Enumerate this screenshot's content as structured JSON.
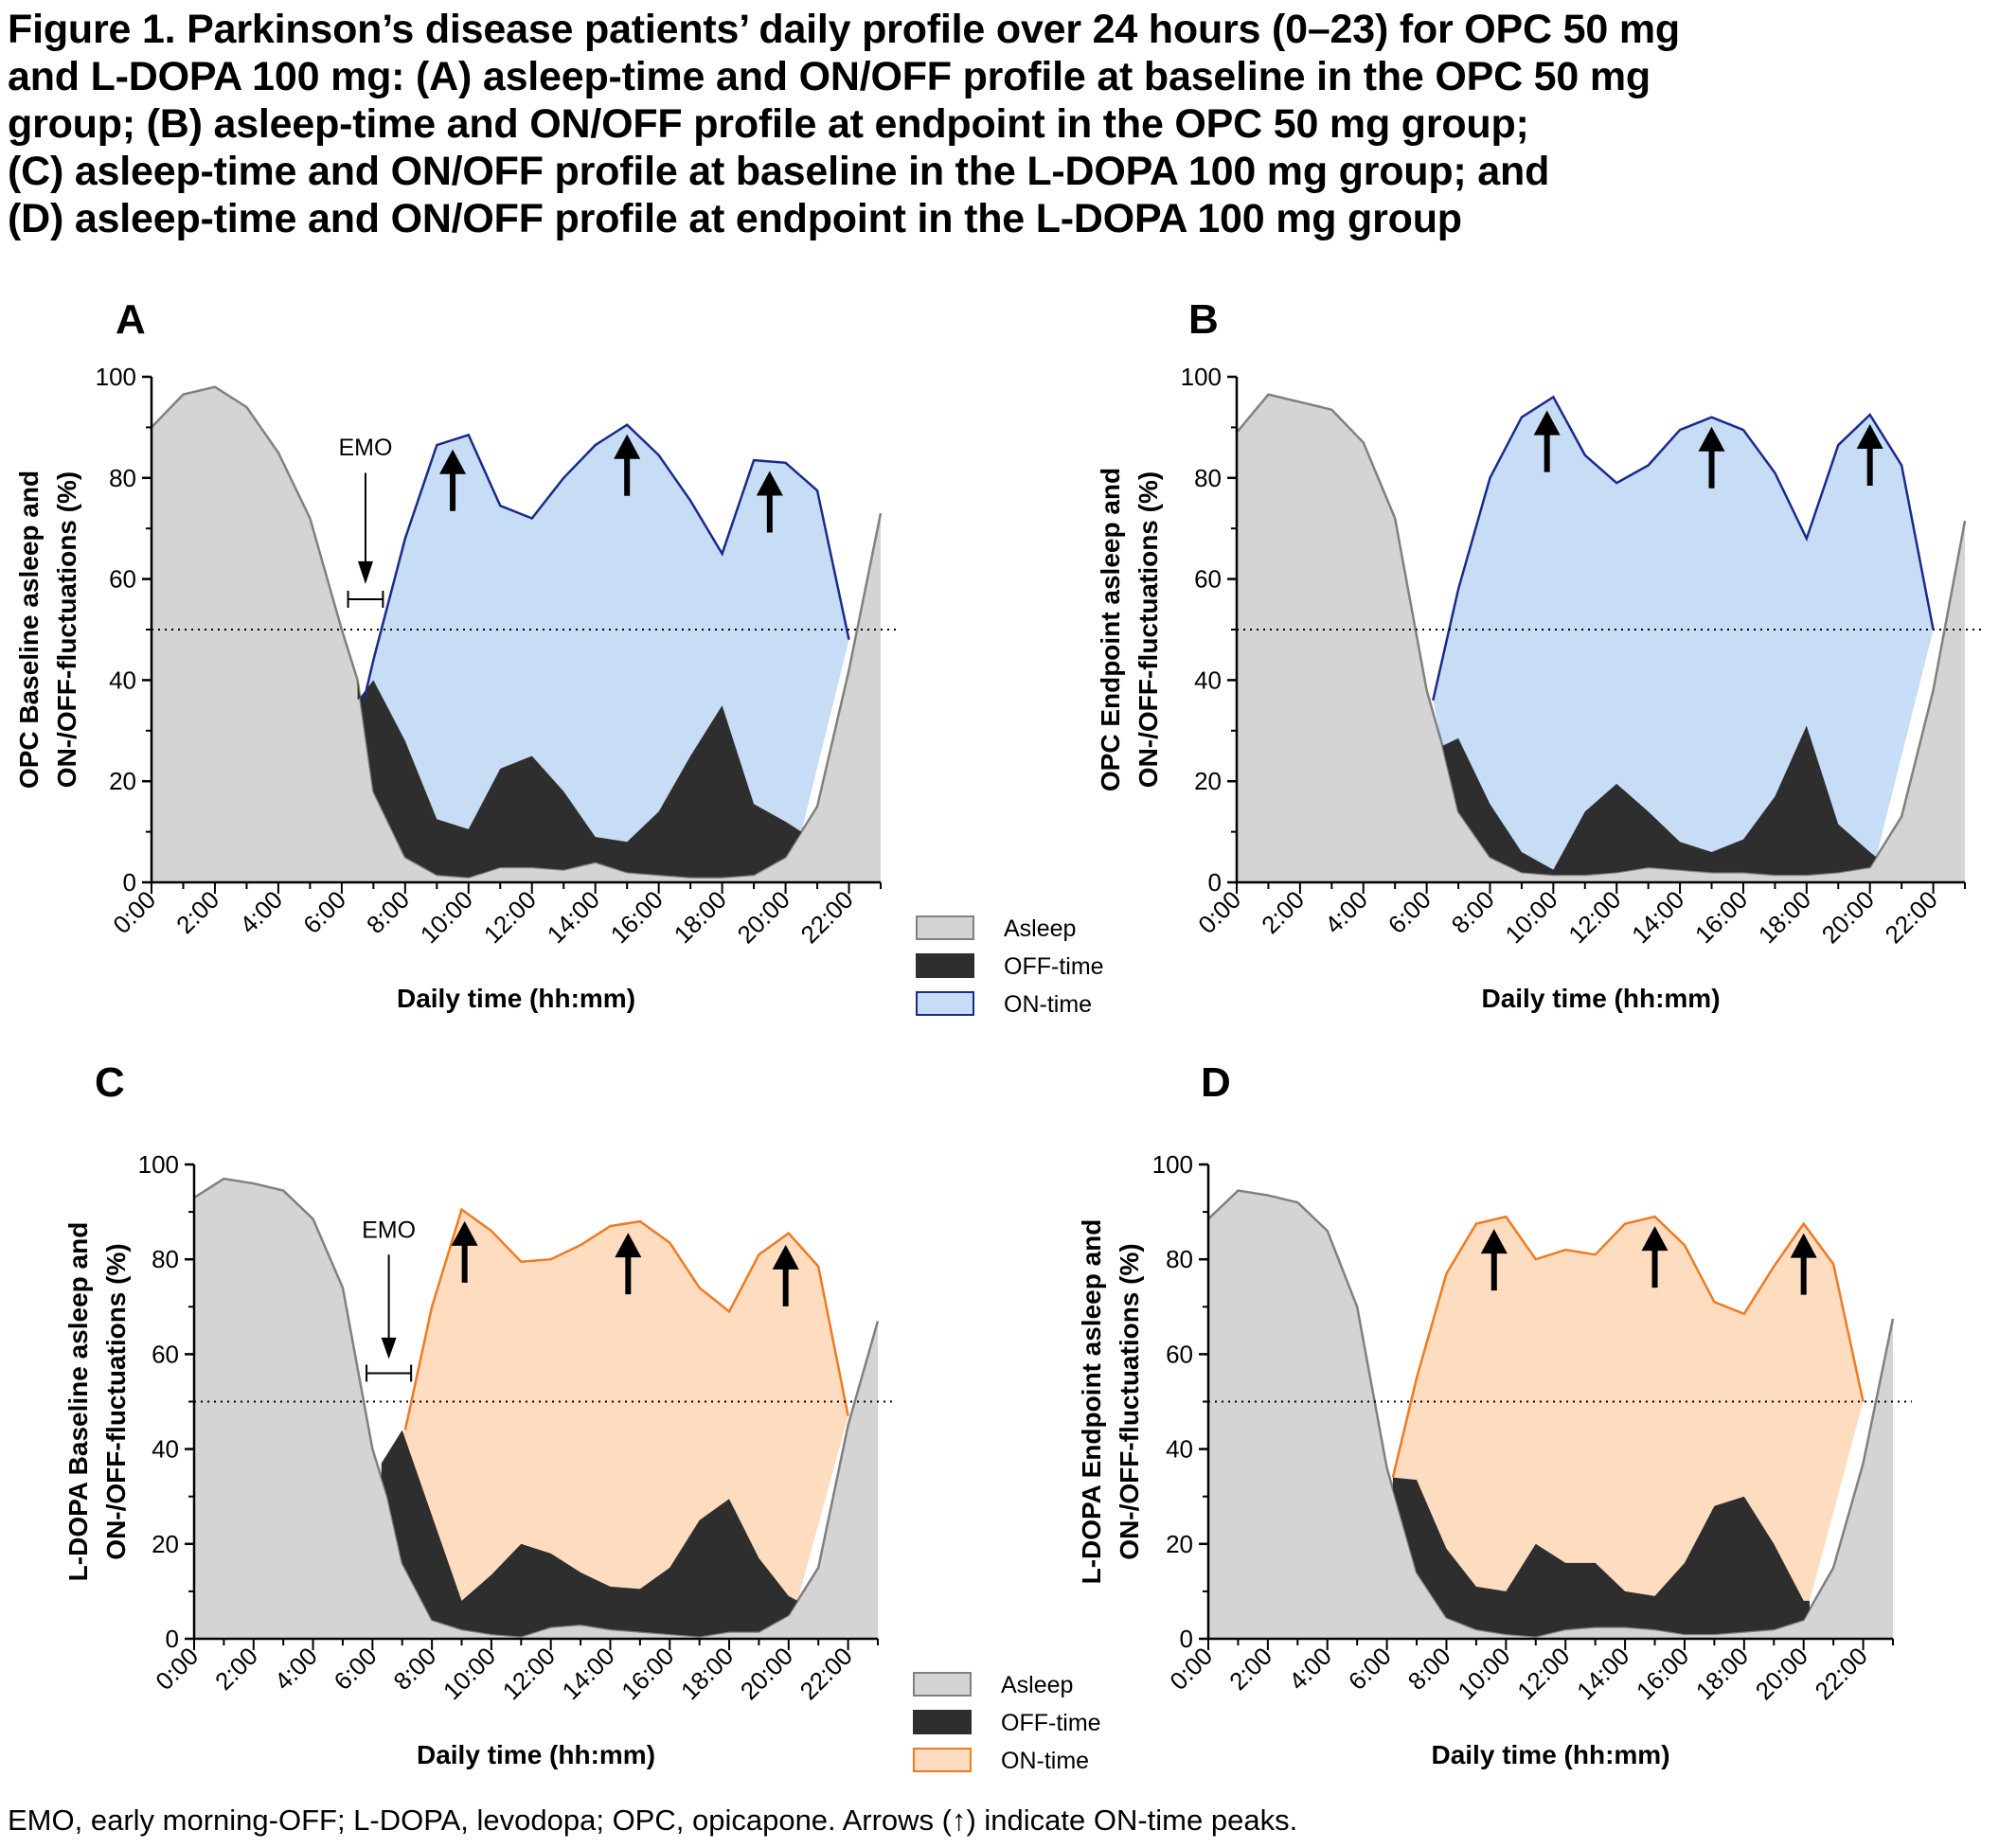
{
  "title_lines": [
    "Figure 1. Parkinson’s disease patients’ daily profile over 24 hours (0–23) for OPC 50 mg",
    "and L-DOPA 100 mg: (A) asleep-time and ON/OFF profile at baseline in the OPC 50 mg",
    "group; (B) asleep-time and ON/OFF profile at endpoint in the OPC 50 mg group;",
    "(C) asleep-time and ON/OFF profile at baseline in the L-DOPA 100 mg group; and",
    "(D) asleep-time and ON/OFF profile at endpoint in the L-DOPA 100 mg group"
  ],
  "footnote": "EMO, early morning-OFF; L-DOPA, levodopa; OPC, opicapone. Arrows (↑) indicate ON-time peaks.",
  "colors": {
    "asleep_fill": "#d4d4d4",
    "asleep_line": "#808080",
    "off_fill": "#2e2e2e",
    "opc_on_fill": "#c7dcf5",
    "opc_on_line": "#1a2a8c",
    "ldopa_on_fill": "#fddcbf",
    "ldopa_on_line": "#ef7a22"
  },
  "chart_data": [
    {
      "panel": "A",
      "type": "area",
      "ylabel_lines": [
        "OPC Baseline asleep and",
        "ON-/OFF-fluctuations (%)"
      ],
      "xlabel": "Daily time (hh:mm)",
      "x_tick_labels": [
        "0:00",
        "2:00",
        "4:00",
        "6:00",
        "8:00",
        "10:00",
        "12:00",
        "14:00",
        "16:00",
        "18:00",
        "20:00",
        "22:00"
      ],
      "y_ticks": [
        0,
        20,
        40,
        60,
        80,
        100
      ],
      "ylim": [
        0,
        100
      ],
      "xlim": [
        0,
        23
      ],
      "reference_line_y": 50,
      "on_color": "opc",
      "asleep": [
        [
          0,
          90
        ],
        [
          1,
          96.5
        ],
        [
          2,
          98
        ],
        [
          3,
          94
        ],
        [
          4,
          85
        ],
        [
          5,
          72
        ],
        [
          6,
          50
        ],
        [
          6.5,
          40
        ],
        [
          7,
          18
        ],
        [
          8,
          5
        ],
        [
          9,
          1.5
        ],
        [
          10,
          1
        ],
        [
          11,
          3
        ],
        [
          12,
          3
        ],
        [
          13,
          2.5
        ],
        [
          14,
          4
        ],
        [
          15,
          2
        ],
        [
          16,
          1.5
        ],
        [
          17,
          1
        ],
        [
          18,
          1
        ],
        [
          19,
          1.5
        ],
        [
          20,
          5
        ],
        [
          21,
          15
        ],
        [
          22,
          42
        ],
        [
          23,
          73
        ]
      ],
      "off_top": [
        [
          6.5,
          36
        ],
        [
          7,
          40
        ],
        [
          8,
          28
        ],
        [
          9,
          12.5
        ],
        [
          10,
          10.5
        ],
        [
          11,
          22.5
        ],
        [
          12,
          25
        ],
        [
          13,
          18
        ],
        [
          14,
          9
        ],
        [
          15,
          8
        ],
        [
          16,
          14
        ],
        [
          17,
          25
        ],
        [
          18,
          35
        ],
        [
          19,
          15.5
        ],
        [
          20,
          12
        ],
        [
          20.5,
          10
        ]
      ],
      "on_top": [
        [
          6.7,
          36
        ],
        [
          7,
          44
        ],
        [
          8,
          68
        ],
        [
          9,
          86.5
        ],
        [
          10,
          88.5
        ],
        [
          11,
          74.5
        ],
        [
          12,
          72
        ],
        [
          13,
          80
        ],
        [
          14,
          86.5
        ],
        [
          15,
          90.5
        ],
        [
          16,
          84.5
        ],
        [
          17,
          75.5
        ],
        [
          18,
          65
        ],
        [
          19,
          83.5
        ],
        [
          20,
          83
        ],
        [
          21,
          77.5
        ],
        [
          22,
          48
        ]
      ],
      "peak_arrows_x": [
        9.5,
        15,
        19.5
      ],
      "emo": {
        "label": "EMO",
        "x_start": 6.2,
        "x_end": 7.3
      },
      "legend": [
        "Asleep",
        "OFF-time",
        "ON-time"
      ]
    },
    {
      "panel": "B",
      "type": "area",
      "ylabel_lines": [
        "OPC Endpoint asleep and",
        "ON-/OFF-fluctuations (%)"
      ],
      "xlabel": "Daily time (hh:mm)",
      "x_tick_labels": [
        "0:00",
        "2:00",
        "4:00",
        "6:00",
        "8:00",
        "10:00",
        "12:00",
        "14:00",
        "16:00",
        "18:00",
        "20:00",
        "22:00"
      ],
      "y_ticks": [
        0,
        20,
        40,
        60,
        80,
        100
      ],
      "ylim": [
        0,
        100
      ],
      "xlim": [
        0,
        23
      ],
      "reference_line_y": 50,
      "on_color": "opc",
      "asleep": [
        [
          0,
          89
        ],
        [
          1,
          96.5
        ],
        [
          2,
          95
        ],
        [
          3,
          93.5
        ],
        [
          4,
          87
        ],
        [
          5,
          72
        ],
        [
          6,
          38
        ],
        [
          6.5,
          27
        ],
        [
          7,
          14
        ],
        [
          8,
          5
        ],
        [
          9,
          2
        ],
        [
          10,
          1.5
        ],
        [
          11,
          1.5
        ],
        [
          12,
          2
        ],
        [
          13,
          3
        ],
        [
          14,
          2.5
        ],
        [
          15,
          2
        ],
        [
          16,
          2
        ],
        [
          17,
          1.5
        ],
        [
          18,
          1.5
        ],
        [
          19,
          2
        ],
        [
          20,
          3
        ],
        [
          21,
          13
        ],
        [
          22,
          38
        ],
        [
          23,
          71.5
        ]
      ],
      "off_top": [
        [
          6.5,
          27
        ],
        [
          7,
          28.5
        ],
        [
          8,
          15.5
        ],
        [
          9,
          6
        ],
        [
          10,
          2.5
        ],
        [
          11,
          14
        ],
        [
          12,
          19.5
        ],
        [
          13,
          14
        ],
        [
          14,
          8
        ],
        [
          15,
          6
        ],
        [
          16,
          8.5
        ],
        [
          17,
          17
        ],
        [
          18,
          31
        ],
        [
          19,
          11.5
        ],
        [
          20,
          6
        ],
        [
          20.2,
          5
        ]
      ],
      "on_top": [
        [
          6.2,
          36
        ],
        [
          7,
          58
        ],
        [
          8,
          80
        ],
        [
          9,
          92
        ],
        [
          10,
          96
        ],
        [
          11,
          84.5
        ],
        [
          12,
          79
        ],
        [
          13,
          82.5
        ],
        [
          14,
          89.5
        ],
        [
          15,
          92
        ],
        [
          16,
          89.5
        ],
        [
          17,
          81
        ],
        [
          18,
          68
        ],
        [
          19,
          86.5
        ],
        [
          20,
          92.5
        ],
        [
          21,
          82.5
        ],
        [
          22,
          50
        ]
      ],
      "peak_arrows_x": [
        9.8,
        15,
        20
      ],
      "emo": null,
      "legend": null
    },
    {
      "panel": "C",
      "type": "area",
      "ylabel_lines": [
        "L-DOPA Baseline asleep and",
        "ON-/OFF-fluctuations (%)"
      ],
      "xlabel": "Daily time (hh:mm)",
      "x_tick_labels": [
        "0:00",
        "2:00",
        "4:00",
        "6:00",
        "8:00",
        "10:00",
        "12:00",
        "14:00",
        "16:00",
        "18:00",
        "20:00",
        "22:00"
      ],
      "y_ticks": [
        0,
        20,
        40,
        60,
        80,
        100
      ],
      "ylim": [
        0,
        100
      ],
      "xlim": [
        0,
        23
      ],
      "reference_line_y": 50,
      "on_color": "ldopa",
      "asleep": [
        [
          0,
          93
        ],
        [
          1,
          97
        ],
        [
          2,
          96
        ],
        [
          3,
          94.5
        ],
        [
          4,
          88.5
        ],
        [
          5,
          74
        ],
        [
          6,
          40
        ],
        [
          6.5,
          30
        ],
        [
          7,
          16
        ],
        [
          8,
          4
        ],
        [
          9,
          2
        ],
        [
          10,
          1
        ],
        [
          11,
          0.5
        ],
        [
          12,
          2.5
        ],
        [
          13,
          3
        ],
        [
          14,
          2
        ],
        [
          15,
          1.5
        ],
        [
          16,
          1
        ],
        [
          17,
          0.5
        ],
        [
          18,
          1.5
        ],
        [
          19,
          1.5
        ],
        [
          20,
          5
        ],
        [
          21,
          15
        ],
        [
          22,
          45
        ],
        [
          23,
          67
        ]
      ],
      "off_top": [
        [
          6.3,
          37
        ],
        [
          7,
          44
        ],
        [
          8,
          26
        ],
        [
          9,
          8
        ],
        [
          10,
          13.5
        ],
        [
          11,
          20
        ],
        [
          12,
          18
        ],
        [
          13,
          14
        ],
        [
          14,
          11
        ],
        [
          15,
          10.5
        ],
        [
          16,
          15
        ],
        [
          17,
          25
        ],
        [
          18,
          29.5
        ],
        [
          19,
          17
        ],
        [
          20,
          9
        ],
        [
          20.3,
          8
        ]
      ],
      "on_top": [
        [
          7.1,
          44
        ],
        [
          8,
          70
        ],
        [
          9,
          90.5
        ],
        [
          10,
          86
        ],
        [
          11,
          79.5
        ],
        [
          12,
          80
        ],
        [
          13,
          83
        ],
        [
          14,
          87
        ],
        [
          15,
          88
        ],
        [
          16,
          83.5
        ],
        [
          17,
          74
        ],
        [
          18,
          69
        ],
        [
          19,
          81
        ],
        [
          20,
          85.5
        ],
        [
          21,
          78.5
        ],
        [
          22,
          47
        ]
      ],
      "peak_arrows_x": [
        9.1,
        14.6,
        19.9
      ],
      "emo": {
        "label": "EMO",
        "x_start": 5.8,
        "x_end": 7.3
      },
      "legend": [
        "Asleep",
        "OFF-time",
        "ON-time"
      ]
    },
    {
      "panel": "D",
      "type": "area",
      "ylabel_lines": [
        "L-DOPA Endpoint asleep and",
        "ON-/OFF-fluctuations (%)"
      ],
      "xlabel": "Daily time (hh:mm)",
      "x_tick_labels": [
        "0:00",
        "2:00",
        "4:00",
        "6:00",
        "8:00",
        "10:00",
        "12:00",
        "14:00",
        "16:00",
        "18:00",
        "20:00",
        "22:00"
      ],
      "y_ticks": [
        0,
        20,
        40,
        60,
        80,
        100
      ],
      "ylim": [
        0,
        100
      ],
      "xlim": [
        0,
        23
      ],
      "reference_line_y": 50,
      "on_color": "ldopa",
      "asleep": [
        [
          0,
          88.5
        ],
        [
          1,
          94.5
        ],
        [
          2,
          93.5
        ],
        [
          3,
          92
        ],
        [
          4,
          86
        ],
        [
          5,
          70
        ],
        [
          6,
          36
        ],
        [
          6.5,
          25
        ],
        [
          7,
          14
        ],
        [
          8,
          4.5
        ],
        [
          9,
          2
        ],
        [
          10,
          1
        ],
        [
          11,
          0.5
        ],
        [
          12,
          2
        ],
        [
          13,
          2.5
        ],
        [
          14,
          2.5
        ],
        [
          15,
          2
        ],
        [
          16,
          1
        ],
        [
          17,
          1
        ],
        [
          18,
          1.5
        ],
        [
          19,
          2
        ],
        [
          20,
          4
        ],
        [
          21,
          15
        ],
        [
          22,
          37
        ],
        [
          23,
          67.5
        ]
      ],
      "off_top": [
        [
          6.2,
          34
        ],
        [
          7,
          33.5
        ],
        [
          8,
          19
        ],
        [
          9,
          11
        ],
        [
          10,
          10
        ],
        [
          11,
          20
        ],
        [
          12,
          16
        ],
        [
          13,
          16
        ],
        [
          14,
          10
        ],
        [
          15,
          9
        ],
        [
          16,
          16
        ],
        [
          17,
          28
        ],
        [
          18,
          30
        ],
        [
          19,
          20
        ],
        [
          20,
          8
        ],
        [
          20.2,
          8
        ]
      ],
      "on_top": [
        [
          6.2,
          34
        ],
        [
          7,
          55
        ],
        [
          8,
          77
        ],
        [
          9,
          87.5
        ],
        [
          10,
          89
        ],
        [
          11,
          80
        ],
        [
          12,
          82
        ],
        [
          13,
          81
        ],
        [
          14,
          87.5
        ],
        [
          15,
          89
        ],
        [
          16,
          83
        ],
        [
          17,
          71
        ],
        [
          18,
          68.5
        ],
        [
          19,
          78.5
        ],
        [
          20,
          87.5
        ],
        [
          21,
          79
        ],
        [
          22,
          50
        ]
      ],
      "peak_arrows_x": [
        9.6,
        15,
        20
      ],
      "emo": null,
      "legend": null
    }
  ]
}
